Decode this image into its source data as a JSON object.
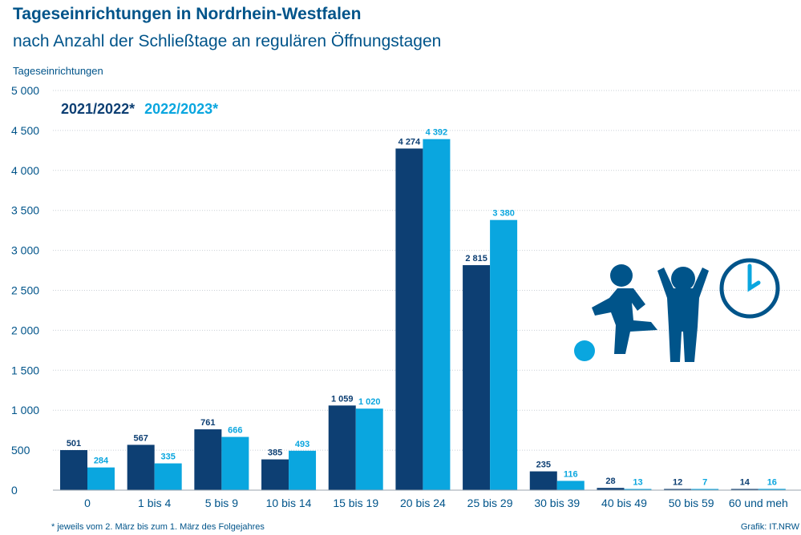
{
  "colors": {
    "series1": "#0d3f73",
    "series2": "#0aa6df",
    "text": "#00548a",
    "grid": "#c9cfd6"
  },
  "icons": [
    "ball-icon",
    "kicking-child-icon",
    "cheering-child-icon",
    "clock-icon"
  ],
  "chart_data": {
    "type": "bar",
    "title": "Tageseinrichtungen in Nordrhein-Westfalen",
    "subtitle": "nach Anzahl der Schließtage an regulären Öffnungstagen",
    "ylabel": "Tageseinrichtungen",
    "xlabel": "",
    "ylim": [
      0,
      5000
    ],
    "yticks": [
      0,
      500,
      1000,
      1500,
      2000,
      2500,
      3000,
      3500,
      4000,
      4500,
      5000
    ],
    "ytick_labels": [
      "0",
      "500",
      "1 000",
      "1 500",
      "2 000",
      "2 500",
      "3 000",
      "3 500",
      "4 000",
      "4 500",
      "5 000"
    ],
    "grid": true,
    "legend_position": "top-left",
    "categories": [
      "0",
      "1 bis 4",
      "5 bis 9",
      "10 bis 14",
      "15 bis 19",
      "20 bis 24",
      "25 bis 29",
      "30 bis 39",
      "40 bis 49",
      "50 bis 59",
      "60 und meh"
    ],
    "series": [
      {
        "name": "2021/2022*",
        "values": [
          501,
          567,
          761,
          385,
          1059,
          4274,
          2815,
          235,
          28,
          12,
          14
        ],
        "labels": [
          "501",
          "567",
          "761",
          "385",
          "1 059",
          "4 274",
          "2 815",
          "235",
          "28",
          "12",
          "14"
        ]
      },
      {
        "name": "2022/2023*",
        "values": [
          284,
          335,
          666,
          493,
          1020,
          4392,
          3380,
          116,
          13,
          7,
          16
        ],
        "labels": [
          "284",
          "335",
          "666",
          "493",
          "1 020",
          "4 392",
          "3 380",
          "116",
          "13",
          "7",
          "16"
        ]
      }
    ],
    "footnote": "*  jeweils vom 2. März bis zum 1. März des Folgejahres",
    "credit": "Grafik: IT.NRW"
  }
}
